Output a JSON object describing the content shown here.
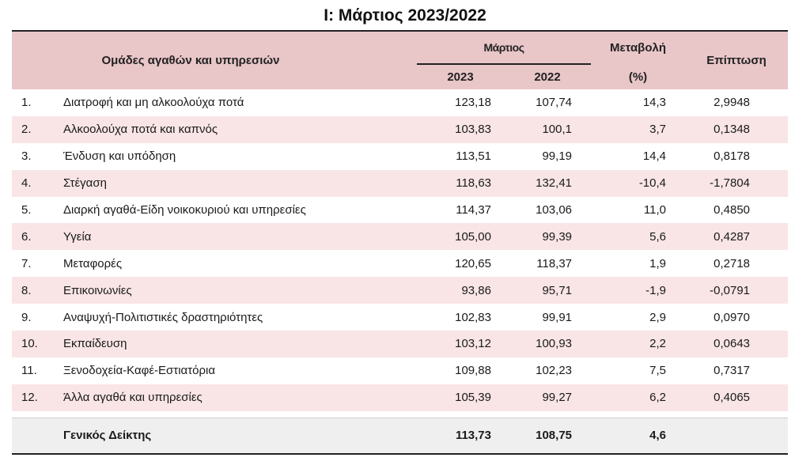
{
  "title": "I: Μάρτιος 2023/2022",
  "header": {
    "groups_label": "Ομάδες αγαθών και υπηρεσιών",
    "month_label": "Μάρτιος",
    "year1": "2023",
    "year2": "2022",
    "change_label": "Μεταβολή",
    "change_unit": "(%)",
    "impact_label": "Επίπτωση"
  },
  "rows": [
    {
      "num": "1.",
      "name": "Διατροφή και μη αλκοολούχα ποτά",
      "v2023": "123,18",
      "v2022": "107,74",
      "change": "14,3",
      "impact": "2,9948"
    },
    {
      "num": "2.",
      "name": "Αλκοολούχα ποτά και καπνός",
      "v2023": "103,83",
      "v2022": "100,1",
      "change": "3,7",
      "impact": "0,1348"
    },
    {
      "num": "3.",
      "name": "Ένδυση και υπόδηση",
      "v2023": "113,51",
      "v2022": "99,19",
      "change": "14,4",
      "impact": "0,8178"
    },
    {
      "num": "4.",
      "name": "Στέγαση",
      "v2023": "118,63",
      "v2022": "132,41",
      "change": "-10,4",
      "impact": "-1,7804"
    },
    {
      "num": "5.",
      "name": "Διαρκή αγαθά-Είδη νοικοκυριού και υπηρεσίες",
      "v2023": "114,37",
      "v2022": "103,06",
      "change": "11,0",
      "impact": "0,4850"
    },
    {
      "num": "6.",
      "name": "Υγεία",
      "v2023": "105,00",
      "v2022": "99,39",
      "change": "5,6",
      "impact": "0,4287"
    },
    {
      "num": "7.",
      "name": "Μεταφορές",
      "v2023": "120,65",
      "v2022": "118,37",
      "change": "1,9",
      "impact": "0,2718"
    },
    {
      "num": "8.",
      "name": "Επικοινωνίες",
      "v2023": "93,86",
      "v2022": "95,71",
      "change": "-1,9",
      "impact": "-0,0791"
    },
    {
      "num": "9.",
      "name": "Αναψυχή-Πολιτιστικές δραστηριότητες",
      "v2023": "102,83",
      "v2022": "99,91",
      "change": "2,9",
      "impact": "0,0970"
    },
    {
      "num": "10.",
      "name": "Εκπαίδευση",
      "v2023": "103,12",
      "v2022": "100,93",
      "change": "2,2",
      "impact": "0,0643"
    },
    {
      "num": "11.",
      "name": "Ξενοδοχεία-Καφέ-Εστιατόρια",
      "v2023": "109,88",
      "v2022": "102,23",
      "change": "7,5",
      "impact": "0,7317"
    },
    {
      "num": "12.",
      "name": "Άλλα αγαθά και υπηρεσίες",
      "v2023": "105,39",
      "v2022": "99,27",
      "change": "6,2",
      "impact": "0,4065"
    }
  ],
  "total": {
    "name": "Γενικός Δείκτης",
    "v2023": "113,73",
    "v2022": "108,75",
    "change": "4,6"
  }
}
